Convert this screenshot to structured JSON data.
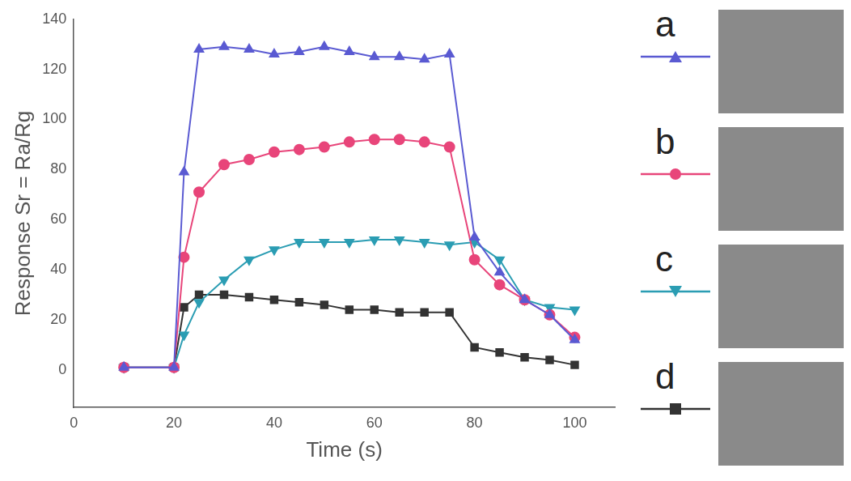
{
  "chart_data": {
    "type": "line",
    "x_label": "Time (s)",
    "y_label": "Response Sr = Ra/Rg",
    "x": [
      10,
      20,
      22,
      25,
      30,
      35,
      40,
      45,
      50,
      55,
      60,
      65,
      70,
      75,
      80,
      85,
      90,
      95,
      100
    ],
    "series": [
      {
        "name": "a",
        "color": "#5a5ad2",
        "marker": "triangle",
        "line_style": "solid",
        "values": [
          1,
          1,
          79,
          128,
          129,
          128,
          126,
          127,
          129,
          127,
          125,
          125,
          124,
          126,
          53,
          39,
          28,
          22,
          12
        ]
      },
      {
        "name": "b",
        "color": "#e8457a",
        "marker": "circle",
        "line_style": "solid",
        "values": [
          1,
          1,
          45,
          71,
          82,
          84,
          87,
          88,
          89,
          91,
          92,
          92,
          91,
          89,
          44,
          34,
          28,
          22,
          13
        ]
      },
      {
        "name": "c",
        "color": "#2b9db3",
        "marker": "triangle-down",
        "line_style": "solid",
        "values": [
          1,
          1,
          14,
          27,
          36,
          44,
          48,
          51,
          51,
          51,
          52,
          52,
          51,
          50,
          51,
          44,
          28,
          25,
          24
        ]
      },
      {
        "name": "d",
        "color": "#333333",
        "marker": "square",
        "line_style": "solid",
        "values": [
          1,
          1,
          25,
          30,
          30,
          29,
          28,
          27,
          26,
          24,
          24,
          23,
          23,
          23,
          9,
          7,
          5,
          4,
          2
        ]
      }
    ],
    "xlim": [
      0,
      108
    ],
    "xticks": [
      0,
      20,
      40,
      60,
      80,
      100
    ],
    "ylim": [
      -15,
      140
    ],
    "yticks": [
      0,
      20,
      40,
      60,
      80,
      100,
      120,
      140
    ],
    "grid": false,
    "legend": "right"
  }
}
